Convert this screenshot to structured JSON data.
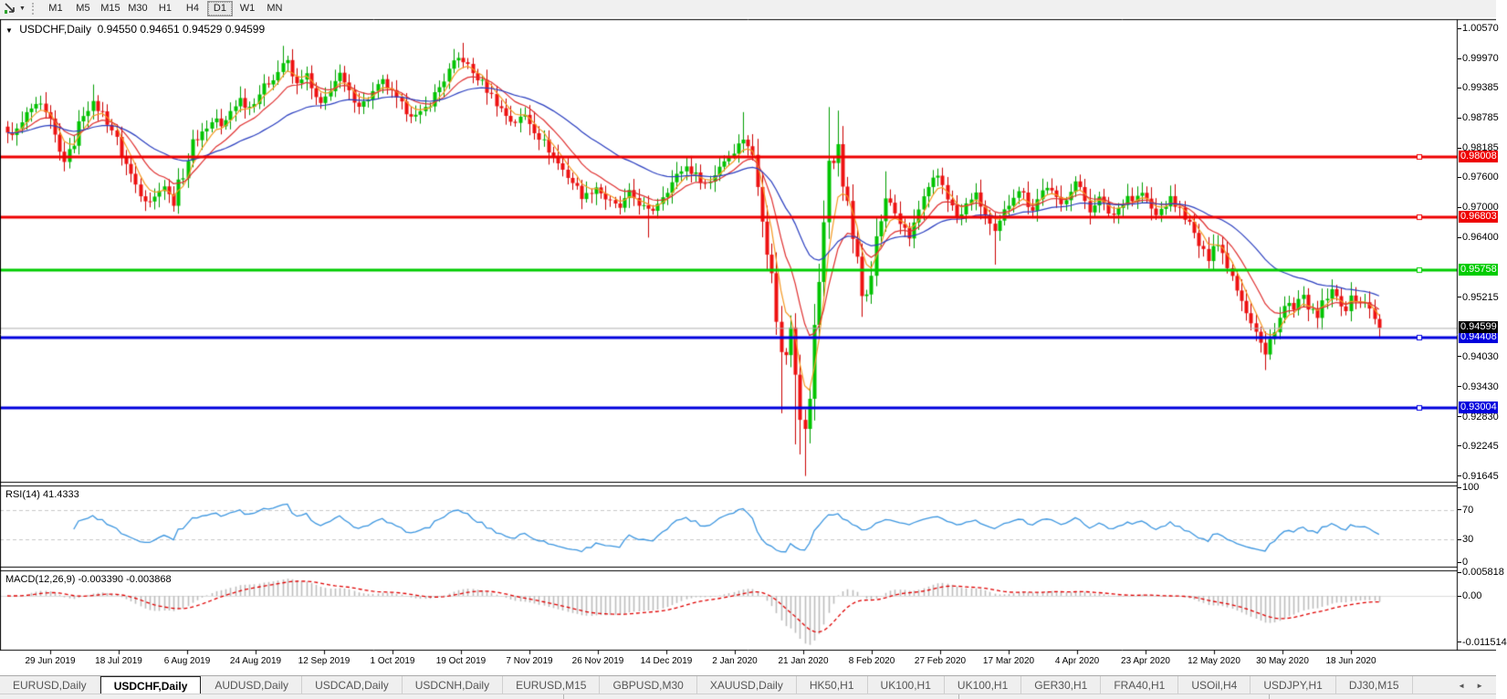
{
  "toolbar": {
    "cursor_tool": "cursor",
    "timeframes": [
      "M1",
      "M5",
      "M15",
      "M30",
      "H1",
      "H4",
      "D1",
      "W1",
      "MN"
    ],
    "active_timeframe": "D1"
  },
  "chart": {
    "dropdown_icon": "▼",
    "title_symbol": "USDCHF,Daily",
    "title_ohlc": "0.94550 0.94651 0.94529 0.94599"
  },
  "indicators": {
    "rsi_name": "RSI(14)",
    "rsi_value": "41.4333",
    "macd_name": "MACD(12,26,9)",
    "macd_value": "-0.003390 -0.003868"
  },
  "tabs": {
    "items": [
      "EURUSD,Daily",
      "USDCHF,Daily",
      "AUDUSD,Daily",
      "USDCAD,Daily",
      "USDCNH,Daily",
      "EURUSD,M15",
      "GBPUSD,M30",
      "XAUUSD,Daily",
      "HK50,H1",
      "UK100,H1",
      "UK100,H1",
      "GER30,H1",
      "FRA40,H1",
      "USOil,H4",
      "USDJPY,H1",
      "DJ30,M15"
    ],
    "active_index": 1,
    "scroll_left": "◄",
    "scroll_right": "►"
  },
  "chart_data": {
    "type": "candlestick",
    "symbol": "USDCHF",
    "period": "Daily",
    "ohlc": {
      "open": 0.9455,
      "high": 0.94651,
      "low": 0.94529,
      "close": 0.94599
    },
    "price_axis": {
      "ticks": [
        "1.00570",
        "0.99970",
        "0.99385",
        "0.98785",
        "0.98185",
        "0.97600",
        "0.97000",
        "0.96400",
        "0.95215",
        "0.94030",
        "0.93430",
        "0.92830",
        "0.92245",
        "0.91645"
      ],
      "range_top": 1.0057,
      "range_bottom": 0.91645
    },
    "hlines": [
      {
        "price": 0.98008,
        "label": "0.98008",
        "color": "#ee0000",
        "width": 3
      },
      {
        "price": 0.96803,
        "label": "0.96803",
        "color": "#ee0000",
        "width": 3
      },
      {
        "price": 0.95758,
        "label": "0.95758",
        "color": "#00cc00",
        "width": 3
      },
      {
        "price": 0.94408,
        "label": "0.94408",
        "color": "#0000dd",
        "width": 3
      },
      {
        "price": 0.93004,
        "label": "0.93004",
        "color": "#0000dd",
        "width": 3
      }
    ],
    "current_price": {
      "price": 0.94599,
      "label": "0.94599",
      "line_color": "#b0b0b0",
      "label_bg": "#000000"
    },
    "candle_colors": {
      "up_fill": "#00c400",
      "up_stroke": "#009e00",
      "down_fill": "#ee1111",
      "down_stroke": "#cc0000"
    },
    "candles": {
      "count": 290,
      "anchors": [
        [
          8,
          0.9845
        ],
        [
          20,
          0.9855
        ],
        [
          32,
          0.9895
        ],
        [
          43,
          0.9903
        ],
        [
          55,
          0.9868
        ],
        [
          68,
          0.979
        ],
        [
          77,
          0.9812
        ],
        [
          90,
          0.9885
        ],
        [
          100,
          0.9908,
          null,
          0.9945
        ],
        [
          112,
          0.9888
        ],
        [
          122,
          0.9858
        ],
        [
          135,
          0.9798
        ],
        [
          147,
          0.975
        ],
        [
          158,
          0.9718
        ],
        [
          168,
          0.9712,
          0.9696
        ],
        [
          177,
          0.9758
        ],
        [
          188,
          0.9705,
          0.9695
        ],
        [
          200,
          0.9768
        ],
        [
          212,
          0.9832
        ],
        [
          225,
          0.9858
        ],
        [
          237,
          0.9878
        ],
        [
          243,
          0.9852
        ],
        [
          252,
          0.9892
        ],
        [
          262,
          0.9918
        ],
        [
          272,
          0.9898
        ],
        [
          285,
          0.9932
        ],
        [
          295,
          0.9952
        ],
        [
          305,
          0.9972
        ],
        [
          312,
          0.9998,
          null,
          1.0022
        ],
        [
          318,
          0.9968
        ],
        [
          325,
          0.9942
        ],
        [
          333,
          0.9972
        ],
        [
          342,
          0.9928
        ],
        [
          352,
          0.9898
        ],
        [
          362,
          0.9942
        ],
        [
          372,
          0.9962
        ],
        [
          382,
          0.9928
        ],
        [
          395,
          0.9902
        ],
        [
          408,
          0.9928
        ],
        [
          420,
          0.9952
        ],
        [
          432,
          0.9918
        ],
        [
          445,
          0.9893
        ],
        [
          458,
          0.9878
        ],
        [
          470,
          0.9908
        ],
        [
          482,
          0.9942
        ],
        [
          495,
          0.9982
        ],
        [
          505,
          1.0002,
          null,
          1.0028
        ],
        [
          515,
          0.9972
        ],
        [
          528,
          0.9948
        ],
        [
          540,
          0.9918
        ],
        [
          552,
          0.9888
        ],
        [
          562,
          0.9868
        ],
        [
          575,
          0.9884
        ],
        [
          588,
          0.9848
        ],
        [
          600,
          0.9818
        ],
        [
          615,
          0.9778
        ],
        [
          628,
          0.9748
        ],
        [
          640,
          0.9718
        ],
        [
          652,
          0.9744
        ],
        [
          665,
          0.9714
        ],
        [
          678,
          0.9698
        ],
        [
          690,
          0.9728
        ],
        [
          700,
          0.9708
        ],
        [
          712,
          0.9688,
          0.964
        ],
        [
          725,
          0.9724
        ],
        [
          738,
          0.9754
        ],
        [
          750,
          0.9784
        ],
        [
          762,
          0.9764
        ],
        [
          775,
          0.9744
        ],
        [
          788,
          0.9784
        ],
        [
          800,
          0.9808
        ],
        [
          808,
          0.9822
        ],
        [
          816,
          0.9845,
          null,
          0.989
        ],
        [
          824,
          0.98
        ],
        [
          830,
          0.974
        ],
        [
          836,
          0.968
        ],
        [
          842,
          0.96
        ],
        [
          848,
          0.952
        ],
        [
          853,
          0.945
        ],
        [
          858,
          0.936,
          0.929
        ],
        [
          863,
          0.9455
        ],
        [
          868,
          0.9482
        ],
        [
          872,
          0.938,
          0.9228
        ],
        [
          877,
          0.9292,
          0.9208
        ],
        [
          882,
          0.9246,
          0.9165
        ],
        [
          887,
          0.933
        ],
        [
          892,
          0.9448
        ],
        [
          897,
          0.9552
        ],
        [
          902,
          0.968
        ],
        [
          907,
          0.9798,
          null,
          0.99
        ],
        [
          912,
          0.9758
        ],
        [
          917,
          0.9848,
          null,
          0.9893
        ],
        [
          922,
          0.9778
        ],
        [
          928,
          0.97
        ],
        [
          934,
          0.964
        ],
        [
          940,
          0.9572
        ],
        [
          945,
          0.9512,
          0.9482
        ],
        [
          952,
          0.956
        ],
        [
          958,
          0.9622
        ],
        [
          965,
          0.968
        ],
        [
          972,
          0.9722,
          null,
          0.9772
        ],
        [
          980,
          0.9692
        ],
        [
          988,
          0.9662
        ],
        [
          995,
          0.9632
        ],
        [
          1002,
          0.9672
        ],
        [
          1010,
          0.9712
        ],
        [
          1018,
          0.9736
        ],
        [
          1026,
          0.9766
        ],
        [
          1034,
          0.9742
        ],
        [
          1042,
          0.9702
        ],
        [
          1050,
          0.9672
        ],
        [
          1058,
          0.9702
        ],
        [
          1066,
          0.973
        ],
        [
          1075,
          0.9702
        ],
        [
          1082,
          0.9672
        ],
        [
          1090,
          0.9642,
          0.9586
        ],
        [
          1098,
          0.9682
        ],
        [
          1106,
          0.9712
        ],
        [
          1114,
          0.9742
        ],
        [
          1122,
          0.9722
        ],
        [
          1130,
          0.9696
        ],
        [
          1138,
          0.9722
        ],
        [
          1146,
          0.9746
        ],
        [
          1154,
          0.9722
        ],
        [
          1162,
          0.9702
        ],
        [
          1170,
          0.9732
        ],
        [
          1178,
          0.9752
        ],
        [
          1186,
          0.9722
        ],
        [
          1194,
          0.9696
        ],
        [
          1202,
          0.9722
        ],
        [
          1210,
          0.9702
        ],
        [
          1218,
          0.9682
        ],
        [
          1226,
          0.9702
        ],
        [
          1234,
          0.9726
        ],
        [
          1242,
          0.9712
        ],
        [
          1250,
          0.9732
        ],
        [
          1258,
          0.9706
        ],
        [
          1266,
          0.9682
        ],
        [
          1274,
          0.9702
        ],
        [
          1282,
          0.9716
        ],
        [
          1290,
          0.97
        ],
        [
          1298,
          0.9682
        ],
        [
          1306,
          0.9652
        ],
        [
          1314,
          0.9622
        ],
        [
          1322,
          0.9596
        ],
        [
          1330,
          0.9642
        ],
        [
          1338,
          0.9612
        ],
        [
          1346,
          0.9582
        ],
        [
          1354,
          0.9546
        ],
        [
          1362,
          0.9512
        ],
        [
          1370,
          0.9476
        ],
        [
          1378,
          0.9442
        ],
        [
          1386,
          0.9402,
          0.9376
        ],
        [
          1394,
          0.9452
        ],
        [
          1402,
          0.9482
        ],
        [
          1410,
          0.9512
        ],
        [
          1418,
          0.9492
        ],
        [
          1426,
          0.9522
        ],
        [
          1434,
          0.9502
        ],
        [
          1442,
          0.9472
        ],
        [
          1450,
          0.9512
        ],
        [
          1458,
          0.9532
        ],
        [
          1466,
          0.9516
        ],
        [
          1474,
          0.95
        ],
        [
          1482,
          0.9522
        ],
        [
          1490,
          0.9512
        ],
        [
          1498,
          0.9506
        ],
        [
          1506,
          0.9482
        ],
        [
          1514,
          0.94599
        ]
      ]
    },
    "moving_averages": [
      {
        "type": "ema",
        "period": 5,
        "color": "#f59a23"
      },
      {
        "type": "ema",
        "period": 12,
        "color": "#e03030"
      },
      {
        "type": "ema",
        "period": 34,
        "color": "#2b3fc0"
      }
    ],
    "rsi": {
      "period": 14,
      "value": 41.4333,
      "levels": [
        70,
        30
      ],
      "axis_ticks": [
        "100",
        "70",
        "30",
        "0"
      ],
      "axis_values": [
        100,
        70,
        30,
        0
      ],
      "color": "#3c96e0"
    },
    "macd": {
      "fast": 12,
      "slow": 26,
      "signal": 9,
      "value": -0.00339,
      "signal_value": -0.003868,
      "axis_ticks": [
        "0.005818",
        "0.00",
        "-0.011514"
      ],
      "axis_values": [
        0.005818,
        0.0,
        -0.011514
      ],
      "hist_color": "#bdbdbd",
      "signal_color": "#e00000"
    },
    "x_labels": [
      "29 Jun 2019",
      "18 Jul 2019",
      "6 Aug 2019",
      "24 Aug 2019",
      "12 Sep 2019",
      "1 Oct 2019",
      "19 Oct 2019",
      "7 Nov 2019",
      "26 Nov 2019",
      "14 Dec 2019",
      "2 Jan 2020",
      "21 Jan 2020",
      "8 Feb 2020",
      "27 Feb 2020",
      "17 Mar 2020",
      "4 Apr 2020",
      "23 Apr 2020",
      "12 May 2020",
      "30 May 2020",
      "18 Jun 2020"
    ]
  }
}
